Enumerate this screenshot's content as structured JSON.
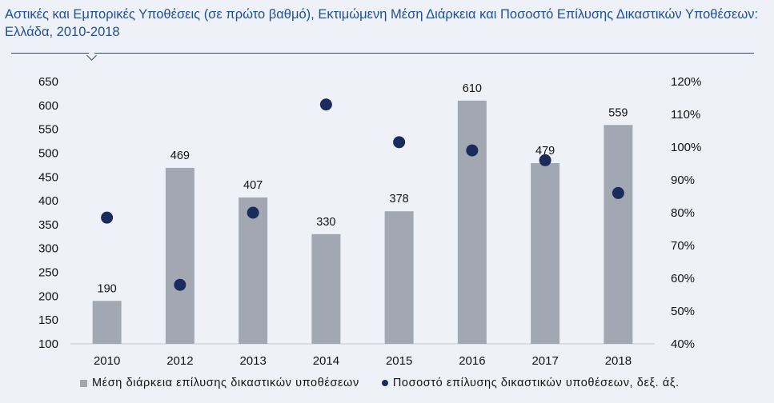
{
  "title": "Αστικές και Εμπορικές Υποθέσεις (σε πρώτο βαθμό), Εκτιμώμενη Μέση Διάρκεια και Ποσοστό Επίλυσης Δικαστικών Υποθέσεων: Ελλάδα, 2010-2018",
  "chart_data": {
    "type": "bar",
    "title": "Αστικές και Εμπορικές Υποθέσεις (σε πρώτο βαθμό), Εκτιμώμενη Μέση Διάρκεια και Ποσοστό Επίλυσης Δικαστικών Υποθέσεων: Ελλάδα, 2010-2018",
    "categories": [
      "2010",
      "2012",
      "2013",
      "2014",
      "2015",
      "2016",
      "2017",
      "2018"
    ],
    "series": [
      {
        "name": "Μέση διάρκεια επίλυσης δικαστικών υποθέσεων",
        "type": "bar",
        "axis": "left",
        "values": [
          190,
          469,
          407,
          330,
          378,
          610,
          479,
          559
        ],
        "data_labels": [
          "190",
          "469",
          "407",
          "330",
          "378",
          "610",
          "479",
          "559"
        ],
        "color": "#a2a8b2"
      },
      {
        "name": "Ποσοστό επίλυσης δικαστικών υποθέσεων, δεξ. άξ.",
        "type": "scatter",
        "axis": "right",
        "values": [
          78.5,
          58,
          80,
          113,
          101.5,
          99,
          96,
          86
        ],
        "color": "#1b2c5c"
      }
    ],
    "y_left": {
      "min": 100,
      "max": 650,
      "ticks": [
        "100",
        "150",
        "200",
        "250",
        "300",
        "350",
        "400",
        "450",
        "500",
        "550",
        "600",
        "650"
      ]
    },
    "y_right": {
      "min": 40,
      "max": 120,
      "ticks": [
        "40%",
        "50%",
        "60%",
        "70%",
        "80%",
        "90%",
        "100%",
        "110%",
        "120%"
      ]
    },
    "grid": false,
    "legend_position": "bottom"
  },
  "colors": {
    "background": "#eef2f8",
    "title": "#1f4e9a",
    "bars": "#a2a8b2",
    "dots": "#1b2c5c"
  }
}
